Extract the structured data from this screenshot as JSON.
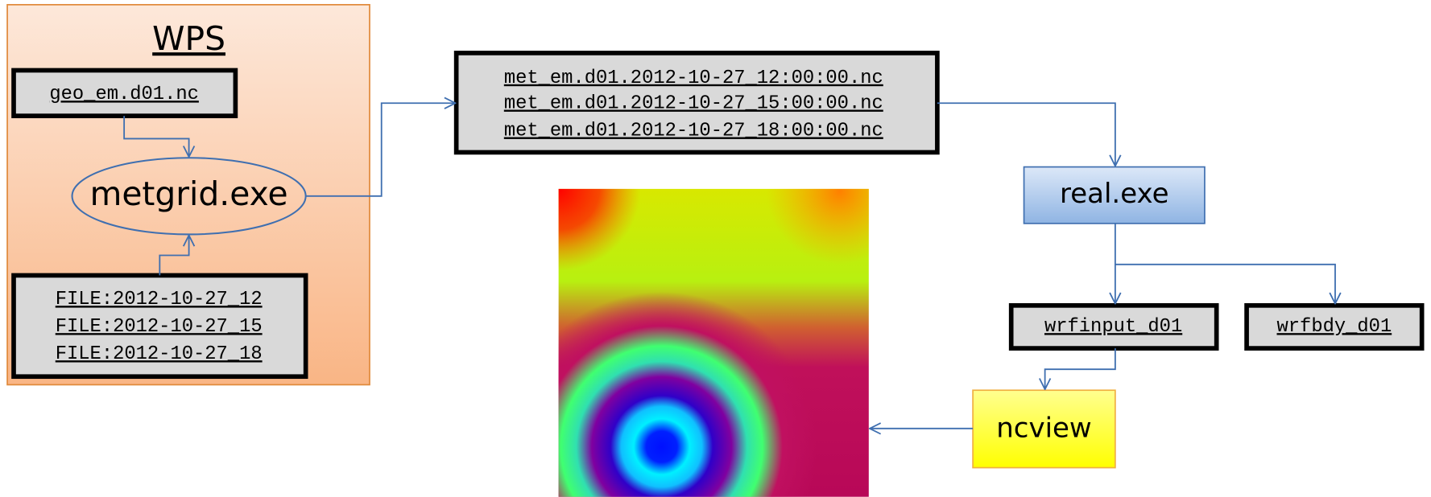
{
  "wps": {
    "title": "WPS",
    "geo_file": "geo_em.d01.nc",
    "program": "metgrid.exe",
    "input_files": [
      "FILE:2012-10-27_12",
      "FILE:2012-10-27_15",
      "FILE:2012-10-27_18"
    ]
  },
  "met_em_files": [
    "met_em.d01.2012-10-27_12:00:00.nc",
    "met_em.d01.2012-10-27_15:00:00.nc",
    "met_em.d01.2012-10-27_18:00:00.nc"
  ],
  "real": "real.exe",
  "outputs": [
    "wrfinput_d01",
    "wrfbdy_d01"
  ],
  "viewer": "ncview"
}
